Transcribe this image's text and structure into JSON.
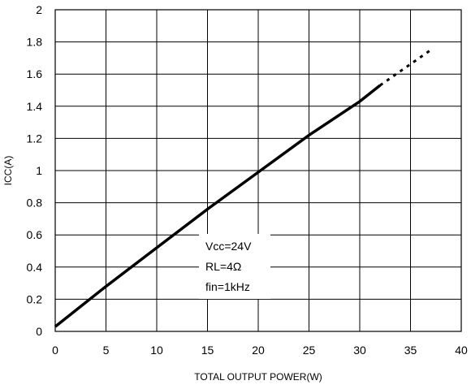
{
  "chart_data": {
    "type": "line",
    "title": "",
    "xlabel": "TOTAL OUTPUT POWER(W)",
    "ylabel": "ICC(A)",
    "xlim": [
      0,
      40
    ],
    "ylim": [
      0,
      2
    ],
    "xticks": [
      "0",
      "5",
      "10",
      "15",
      "20",
      "25",
      "30",
      "35",
      "40"
    ],
    "yticks": [
      "0",
      "0.2",
      "0.4",
      "0.6",
      "0.8",
      "1",
      "1.2",
      "1.4",
      "1.6",
      "1.8",
      "2"
    ],
    "grid": true,
    "annotations": [
      "Vcc=24V",
      "RL=4Ω",
      "fin=1kHz"
    ],
    "series": [
      {
        "style": "solid",
        "x": [
          0,
          1,
          5,
          10,
          15,
          20,
          25,
          30,
          32
        ],
        "y": [
          0.03,
          0.08,
          0.28,
          0.52,
          0.76,
          0.99,
          1.22,
          1.43,
          1.53
        ]
      },
      {
        "style": "dotted",
        "x": [
          32,
          34.5,
          37
        ],
        "y": [
          1.53,
          1.64,
          1.75
        ]
      }
    ]
  }
}
